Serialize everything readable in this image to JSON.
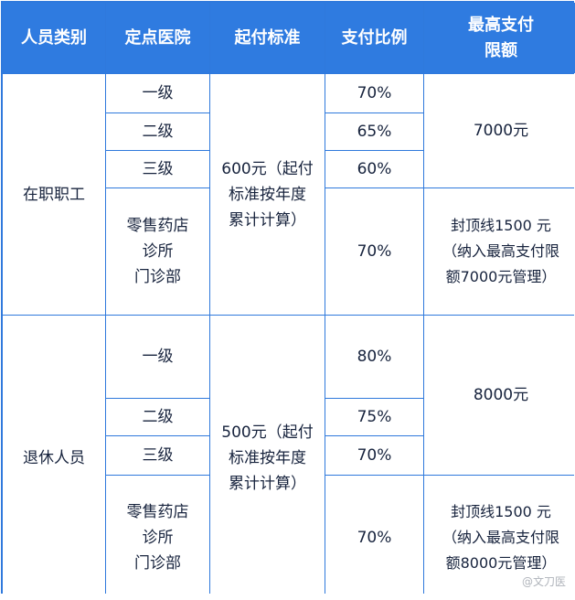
{
  "header": [
    "人员类别",
    "定点医院",
    "起付标准",
    "支付比例",
    "最高支付\n限额"
  ],
  "employed": {
    "category": "在职职工",
    "deductible": "600元（起付\n标准按年度\n累计计算）",
    "levels": [
      "一级",
      "二级",
      "三级",
      "零售药店\n诊所\n门诊部"
    ],
    "ratios": [
      "70%",
      "65%",
      "60%",
      "70%"
    ],
    "limit": "7000元",
    "retail_limit": "封顶线1500 元\n（纳入最高支付限\n额7000元管理）"
  },
  "retired": {
    "category": "退休人员",
    "deductible": "500元（起付\n标准按年度\n累计计算）",
    "levels": [
      "一级",
      "二级",
      "三级",
      "零售药店\n诊所\n门诊部"
    ],
    "ratios": [
      "80%",
      "75%",
      "70%",
      "70%"
    ],
    "limit": "8000元",
    "retail_limit": "封顶线1500 元\n（纳入最高支付限\n额8000元管理）"
  },
  "watermark": "@文刀医",
  "colors": {
    "header": "#2f7be0",
    "border": "#2f79dc",
    "text": "#17233d"
  }
}
